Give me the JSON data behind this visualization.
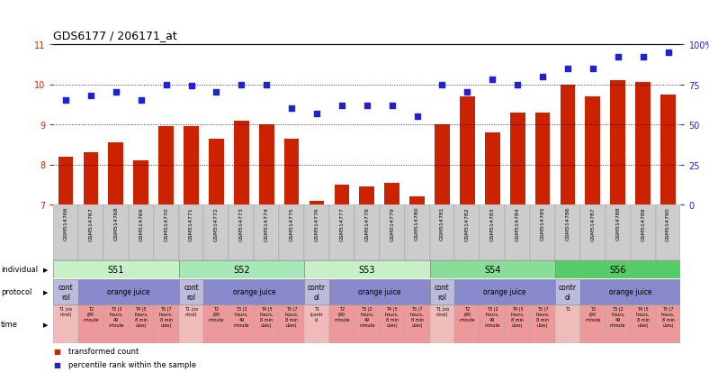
{
  "title": "GDS6177 / 206171_at",
  "samples": [
    "GSM514766",
    "GSM514767",
    "GSM514768",
    "GSM514769",
    "GSM514770",
    "GSM514771",
    "GSM514772",
    "GSM514773",
    "GSM514774",
    "GSM514775",
    "GSM514776",
    "GSM514777",
    "GSM514778",
    "GSM514779",
    "GSM514780",
    "GSM514781",
    "GSM514782",
    "GSM514783",
    "GSM514784",
    "GSM514785",
    "GSM514786",
    "GSM514787",
    "GSM514788",
    "GSM514789",
    "GSM514790"
  ],
  "bar_values": [
    8.2,
    8.3,
    8.55,
    8.1,
    8.95,
    8.95,
    8.65,
    9.1,
    9.0,
    8.65,
    7.1,
    7.5,
    7.45,
    7.55,
    7.2,
    9.0,
    9.7,
    8.8,
    9.3,
    9.3,
    10.0,
    9.7,
    10.1,
    10.05,
    9.75
  ],
  "dot_values_pct": [
    65,
    68,
    70,
    65,
    75,
    74,
    70,
    75,
    75,
    60,
    57,
    62,
    62,
    62,
    55,
    75,
    70,
    78,
    75,
    80,
    85,
    85,
    92,
    92,
    95
  ],
  "ylim_left": [
    7,
    11
  ],
  "ylim_right": [
    0,
    100
  ],
  "yticks_left": [
    7,
    8,
    9,
    10,
    11
  ],
  "yticks_right": [
    0,
    25,
    50,
    75,
    100
  ],
  "bar_color": "#CC2200",
  "dot_color": "#2222CC",
  "individuals": [
    {
      "label": "S51",
      "start": 0,
      "end": 4,
      "color": "#C8F0C8"
    },
    {
      "label": "S52",
      "start": 5,
      "end": 9,
      "color": "#A8E8B8"
    },
    {
      "label": "S53",
      "start": 10,
      "end": 14,
      "color": "#C8F0C8"
    },
    {
      "label": "S54",
      "start": 15,
      "end": 19,
      "color": "#88DD99"
    },
    {
      "label": "S56",
      "start": 20,
      "end": 24,
      "color": "#55CC66"
    }
  ],
  "protocols": [
    {
      "label": "cont\nrol",
      "start": 0,
      "end": 0,
      "color": "#BBBBDD"
    },
    {
      "label": "orange juice",
      "start": 1,
      "end": 4,
      "color": "#8888CC"
    },
    {
      "label": "cont\nrol",
      "start": 5,
      "end": 5,
      "color": "#BBBBDD"
    },
    {
      "label": "orange juice",
      "start": 6,
      "end": 9,
      "color": "#8888CC"
    },
    {
      "label": "contr\nol",
      "start": 10,
      "end": 10,
      "color": "#BBBBDD"
    },
    {
      "label": "orange juice",
      "start": 11,
      "end": 14,
      "color": "#8888CC"
    },
    {
      "label": "cont\nrol",
      "start": 15,
      "end": 15,
      "color": "#BBBBDD"
    },
    {
      "label": "orange juice",
      "start": 16,
      "end": 19,
      "color": "#8888CC"
    },
    {
      "label": "contr\nol",
      "start": 20,
      "end": 20,
      "color": "#BBBBDD"
    },
    {
      "label": "orange juice",
      "start": 21,
      "end": 24,
      "color": "#8888CC"
    }
  ],
  "time_labels": [
    "T1 (co\nntrol)",
    "T2\n(90\nminute",
    "T3 (2\nhours,\n49\nminute",
    "T4 (5\nhours,\n8 min\nutes)",
    "T5 (7\nhours,\n8 min\nutes)",
    "T1 (co\nntrol)",
    "T2\n(90\nminute",
    "T3 (2\nhours,\n49\nminute",
    "T4 (5\nhours,\n8 min\nutes)",
    "T5 (7\nhours,\n8 min\nutes)",
    "T1\n(contr\nol",
    "T2\n(90\nminute",
    "T3 (2\nhours,\n49\nminute",
    "T4 (5\nhours,\n8 min\nutes)",
    "T5 (7\nhours,\n8 min\nutes)",
    "T1 (co\nntrol)",
    "T2\n(90\nminute",
    "T3 (2\nhours,\n49\nminute",
    "T4 (5\nhours,\n8 min\nutes)",
    "T5 (7\nhours,\n8 min\nutes)",
    "T1",
    "T2\n(90\nminute",
    "T3 (2\nhours,\n49\nminute",
    "T4 (5\nhours,\n8 min\nutes)",
    "T5 (7\nhours,\n8 min\nutes)"
  ],
  "time_control_color": "#F0BBBB",
  "time_oj_color": "#EE9999",
  "time_control_indices": [
    0,
    5,
    10,
    15,
    20
  ],
  "legend_bar_label": "transformed count",
  "legend_dot_label": "percentile rank within the sample",
  "row_labels": [
    "individual",
    "protocol",
    "time"
  ],
  "background_color": "#FFFFFF",
  "sample_bg_even": "#CCCCCC",
  "sample_bg_odd": "#CCCCCC"
}
